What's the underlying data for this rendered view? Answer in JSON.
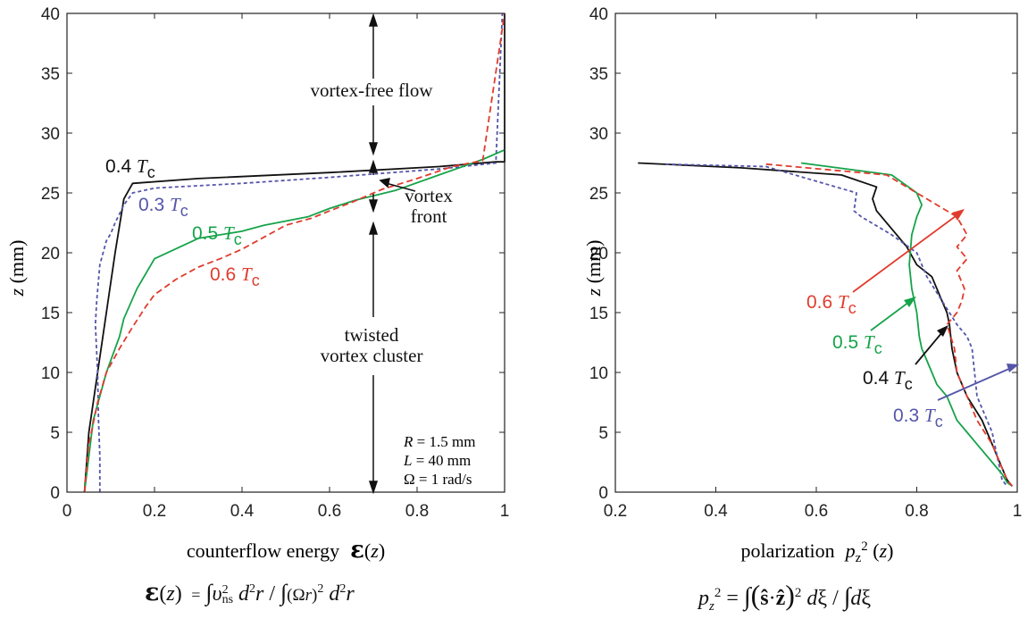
{
  "chart_data": [
    {
      "type": "line",
      "title": "",
      "xlabel": "counterflow energy",
      "xlabel_symbol": "ε(z)",
      "ylabel": "z (mm)",
      "xlim": [
        0,
        1
      ],
      "ylim": [
        0,
        40
      ],
      "xticks": [
        "0",
        "0.2",
        "0.4",
        "0.6",
        "0.8",
        "1"
      ],
      "yticks": [
        "0",
        "5",
        "10",
        "15",
        "20",
        "25",
        "30",
        "35",
        "40"
      ],
      "series": [
        {
          "name": "0.4 Tc",
          "label_num": "0.4",
          "color": "#111111",
          "dash": "",
          "x": [
            0.04,
            0.05,
            0.07,
            0.09,
            0.11,
            0.13,
            0.15,
            0.3,
            0.6,
            0.85,
            0.98,
            1.0,
            1.0
          ],
          "y": [
            0,
            5,
            10,
            15,
            20,
            24.5,
            25.8,
            26.2,
            26.7,
            27.2,
            27.6,
            27.6,
            40
          ]
        },
        {
          "name": "0.3 Tc",
          "label_num": "0.3",
          "color": "#5555aa",
          "dash": "4,3",
          "x": [
            0.075,
            0.075,
            0.072,
            0.07,
            0.065,
            0.068,
            0.075,
            0.09,
            0.1,
            0.11,
            0.13,
            0.15,
            0.2,
            0.4,
            0.6,
            0.85,
            0.98,
            0.995
          ],
          "y": [
            0,
            3,
            6,
            10,
            14,
            16,
            19,
            21,
            21.6,
            22.5,
            24,
            25,
            25.4,
            25.8,
            26.3,
            27,
            27.5,
            40
          ]
        },
        {
          "name": "0.5 Tc",
          "label_num": "0.5",
          "color": "#16a34a",
          "dash": "",
          "x": [
            0.04,
            0.06,
            0.09,
            0.1,
            0.12,
            0.13,
            0.16,
            0.2,
            0.3,
            0.4,
            0.45,
            0.55,
            0.6,
            0.66,
            0.75,
            0.85,
            0.95,
            1.0
          ],
          "y": [
            0,
            6,
            10,
            11,
            13,
            14.5,
            17,
            19.5,
            21.2,
            21.8,
            22.3,
            23,
            23.7,
            24.4,
            25.2,
            26.5,
            27.8,
            28.6
          ]
        },
        {
          "name": "0.6 Tc",
          "label_num": "0.6",
          "color": "#e03c2d",
          "dash": "7,4",
          "x": [
            0.04,
            0.05,
            0.07,
            0.09,
            0.12,
            0.15,
            0.18,
            0.2,
            0.25,
            0.3,
            0.35,
            0.4,
            0.45,
            0.5,
            0.56,
            0.6,
            0.65,
            0.72,
            0.8,
            0.88,
            0.95,
            1.0
          ],
          "y": [
            0,
            4,
            7.5,
            10,
            12,
            13.8,
            15.5,
            16.5,
            17.8,
            18.8,
            19.5,
            20.3,
            21.3,
            22.3,
            22.9,
            23.5,
            24.2,
            25.3,
            26.2,
            27.2,
            27.7,
            40
          ]
        }
      ],
      "annotations": [
        {
          "text": "vortex-free flow"
        },
        {
          "text": "vortex"
        },
        {
          "text": "front"
        },
        {
          "text": "twisted"
        },
        {
          "text": "vortex cluster"
        }
      ],
      "params": [
        {
          "sym": "R",
          "val": " = 1.5 mm"
        },
        {
          "sym": "L",
          "val": " = 40 mm"
        },
        {
          "sym": "Ω",
          "val": " = 1 rad/s"
        }
      ]
    },
    {
      "type": "line",
      "title": "",
      "xlabel": "polarization",
      "xlabel_symbol": "pz² (z)",
      "ylabel": "z (mm)",
      "xlim": [
        0.2,
        1.0
      ],
      "ylim": [
        0,
        40
      ],
      "xticks": [
        "0.2",
        "0.4",
        "0.6",
        "0.8",
        "1"
      ],
      "yticks": [
        "0",
        "5",
        "10",
        "15",
        "20",
        "25",
        "30",
        "35",
        "40"
      ],
      "series": [
        {
          "name": "0.4 Tc",
          "label_num": "0.4",
          "color": "#111111",
          "dash": "",
          "x": [
            0.245,
            0.45,
            0.65,
            0.72,
            0.712,
            0.72,
            0.75,
            0.78,
            0.8,
            0.83,
            0.84,
            0.85,
            0.86,
            0.865,
            0.87,
            0.88,
            0.9,
            0.93,
            0.95,
            0.97,
            0.98,
            0.99
          ],
          "y": [
            27.5,
            27.1,
            26.5,
            25.5,
            24.5,
            23.5,
            22,
            20.5,
            19,
            18,
            17,
            16,
            15,
            14,
            12,
            10,
            8,
            6,
            4,
            2,
            1,
            0.5
          ]
        },
        {
          "name": "0.3 Tc",
          "label_num": "0.3",
          "color": "#5555aa",
          "dash": "4,3",
          "x": [
            0.3,
            0.5,
            0.68,
            0.675,
            0.69,
            0.71,
            0.75,
            0.8,
            0.82,
            0.85,
            0.88,
            0.9,
            0.91,
            0.915,
            0.92,
            0.93,
            0.95,
            0.96,
            0.97,
            0.98
          ],
          "y": [
            27.4,
            27.2,
            25,
            23.5,
            23,
            22.5,
            21.5,
            20,
            18,
            16,
            14,
            13,
            12,
            10,
            8,
            7,
            5,
            3,
            1,
            0.5
          ]
        },
        {
          "name": "0.5 Tc",
          "label_num": "0.5",
          "color": "#16a34a",
          "dash": "",
          "x": [
            0.57,
            0.75,
            0.8,
            0.81,
            0.8,
            0.79,
            0.785,
            0.79,
            0.8,
            0.805,
            0.81,
            0.82,
            0.84,
            0.86,
            0.88,
            0.9,
            0.92,
            0.95,
            0.97,
            0.98,
            0.99
          ],
          "y": [
            27.5,
            26.5,
            25,
            24,
            23,
            21.5,
            19,
            17,
            15,
            13,
            12,
            11,
            9,
            8,
            6,
            5,
            4,
            2.5,
            1.5,
            0.8,
            0.5
          ]
        },
        {
          "name": "0.6 Tc",
          "label_num": "0.6",
          "color": "#e03c2d",
          "dash": "7,4",
          "x": [
            0.5,
            0.74,
            0.8,
            0.86,
            0.88,
            0.9,
            0.88,
            0.9,
            0.88,
            0.895,
            0.89,
            0.88,
            0.86,
            0.875,
            0.88,
            0.9,
            0.92,
            0.95,
            0.97,
            0.98,
            0.99
          ],
          "y": [
            27.4,
            26.5,
            25,
            23.5,
            23,
            21.5,
            20.5,
            19.5,
            18.5,
            17,
            16,
            15,
            14,
            12,
            10,
            8,
            6,
            4,
            2,
            1,
            0.5
          ]
        }
      ]
    }
  ],
  "formulas": {
    "left": {
      "lhs": "ε(z)",
      "eq": "=",
      "rhs": "∫υ²ns d²r / ∫(Ωr)² d²r"
    },
    "right": {
      "lhs": "pz²",
      "eq": "=",
      "rhs": "∫(ŝ·ẑ)² dξ / ∫dξ"
    }
  }
}
